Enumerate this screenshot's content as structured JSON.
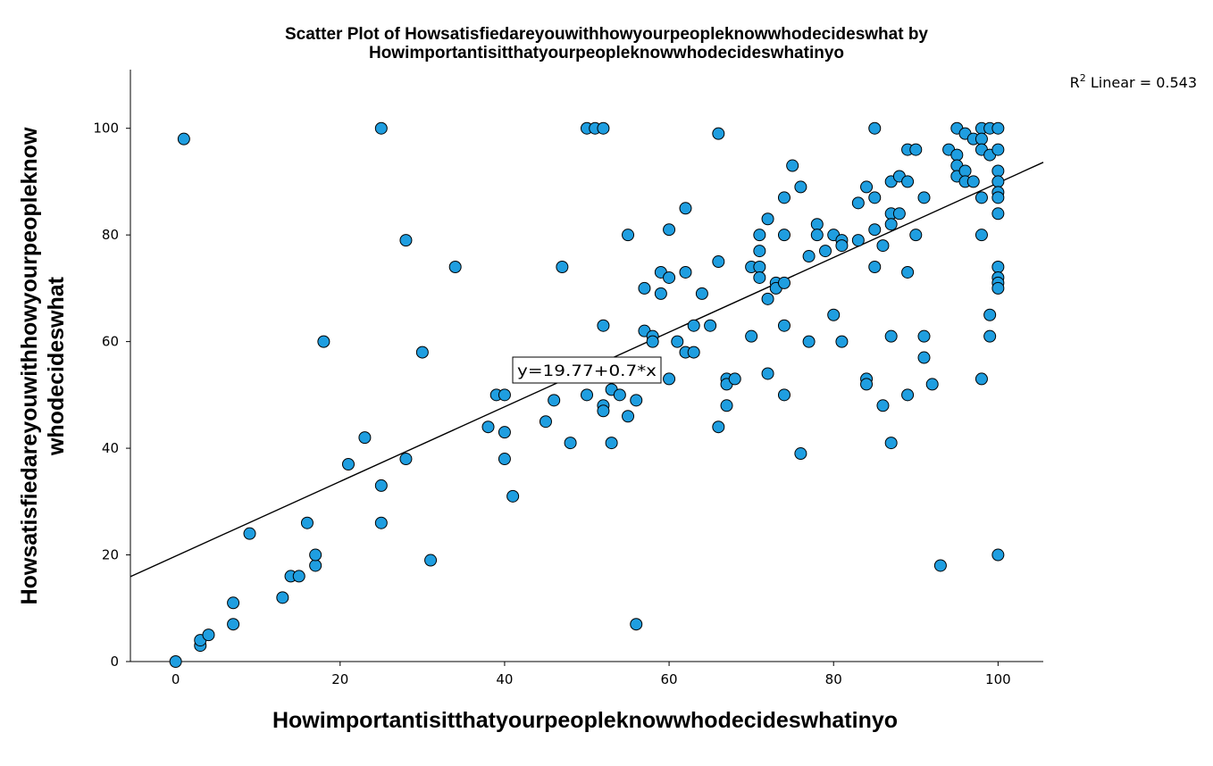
{
  "chart_data": {
    "type": "scatter",
    "title_line1": "Scatter Plot of Howsatisfiedareyouwithhowyourpeopleknowwhodecideswhat by",
    "title_line2": "Howimportantisitthatyourpeopleknowwhodecideswhatinyo",
    "xlabel": "Howimportantisitthatyourpeopleknowwhodecideswhatinyo",
    "ylabel_line1": "Howsatisfiedareyouwithhowyourpeopleknow",
    "ylabel_line2": "whodecideswhat",
    "r2_label": "Linear = 0.543",
    "r2_prefix": "R",
    "r2_sup": "2",
    "fit_equation": "y=19.77+0.7*x",
    "fit": {
      "intercept": 19.77,
      "slope": 0.7
    },
    "xlim": [
      -5.5,
      105.5
    ],
    "ylim": [
      0,
      111
    ],
    "xticks": [
      0,
      20,
      40,
      60,
      80,
      100
    ],
    "yticks": [
      0,
      20,
      40,
      60,
      80,
      100
    ],
    "grid": false,
    "point_color": "#1f9ee0",
    "points": [
      [
        0,
        0
      ],
      [
        1,
        98
      ],
      [
        3,
        3
      ],
      [
        3,
        4
      ],
      [
        4,
        5
      ],
      [
        7,
        7
      ],
      [
        7,
        11
      ],
      [
        9,
        24
      ],
      [
        13,
        12
      ],
      [
        14,
        16
      ],
      [
        15,
        16
      ],
      [
        16,
        26
      ],
      [
        17,
        18
      ],
      [
        17,
        20
      ],
      [
        18,
        60
      ],
      [
        21,
        37
      ],
      [
        23,
        42
      ],
      [
        25,
        26
      ],
      [
        25,
        33
      ],
      [
        25,
        100
      ],
      [
        28,
        38
      ],
      [
        28,
        79
      ],
      [
        30,
        58
      ],
      [
        31,
        19
      ],
      [
        34,
        74
      ],
      [
        38,
        44
      ],
      [
        39,
        50
      ],
      [
        40,
        50
      ],
      [
        40,
        43
      ],
      [
        40,
        38
      ],
      [
        41,
        31
      ],
      [
        45,
        45
      ],
      [
        46,
        49
      ],
      [
        47,
        74
      ],
      [
        48,
        41
      ],
      [
        50,
        50
      ],
      [
        50,
        100
      ],
      [
        51,
        100
      ],
      [
        52,
        100
      ],
      [
        52,
        63
      ],
      [
        52,
        48
      ],
      [
        52,
        47
      ],
      [
        53,
        51
      ],
      [
        53,
        41
      ],
      [
        54,
        50
      ],
      [
        55,
        46
      ],
      [
        55,
        80
      ],
      [
        56,
        49
      ],
      [
        56,
        7
      ],
      [
        57,
        70
      ],
      [
        57,
        62
      ],
      [
        58,
        61
      ],
      [
        58,
        60
      ],
      [
        59,
        73
      ],
      [
        59,
        69
      ],
      [
        60,
        81
      ],
      [
        60,
        72
      ],
      [
        60,
        53
      ],
      [
        61,
        60
      ],
      [
        62,
        85
      ],
      [
        62,
        73
      ],
      [
        62,
        58
      ],
      [
        63,
        63
      ],
      [
        63,
        58
      ],
      [
        64,
        69
      ],
      [
        65,
        63
      ],
      [
        66,
        99
      ],
      [
        66,
        75
      ],
      [
        66,
        44
      ],
      [
        67,
        53
      ],
      [
        67,
        52
      ],
      [
        67,
        48
      ],
      [
        68,
        53
      ],
      [
        70,
        74
      ],
      [
        70,
        61
      ],
      [
        71,
        80
      ],
      [
        71,
        77
      ],
      [
        71,
        74
      ],
      [
        71,
        72
      ],
      [
        72,
        83
      ],
      [
        72,
        68
      ],
      [
        72,
        54
      ],
      [
        73,
        71
      ],
      [
        73,
        70
      ],
      [
        74,
        87
      ],
      [
        74,
        80
      ],
      [
        74,
        71
      ],
      [
        74,
        63
      ],
      [
        74,
        50
      ],
      [
        75,
        93
      ],
      [
        76,
        89
      ],
      [
        76,
        39
      ],
      [
        77,
        76
      ],
      [
        77,
        60
      ],
      [
        78,
        82
      ],
      [
        78,
        80
      ],
      [
        79,
        77
      ],
      [
        80,
        80
      ],
      [
        80,
        65
      ],
      [
        81,
        79
      ],
      [
        81,
        78
      ],
      [
        81,
        60
      ],
      [
        83,
        86
      ],
      [
        83,
        79
      ],
      [
        84,
        89
      ],
      [
        84,
        53
      ],
      [
        84,
        52
      ],
      [
        85,
        100
      ],
      [
        85,
        87
      ],
      [
        85,
        81
      ],
      [
        85,
        74
      ],
      [
        86,
        78
      ],
      [
        86,
        48
      ],
      [
        87,
        90
      ],
      [
        87,
        84
      ],
      [
        87,
        82
      ],
      [
        87,
        61
      ],
      [
        87,
        41
      ],
      [
        88,
        91
      ],
      [
        88,
        84
      ],
      [
        89,
        96
      ],
      [
        89,
        90
      ],
      [
        89,
        73
      ],
      [
        89,
        50
      ],
      [
        90,
        96
      ],
      [
        90,
        80
      ],
      [
        91,
        87
      ],
      [
        91,
        61
      ],
      [
        91,
        57
      ],
      [
        92,
        52
      ],
      [
        93,
        18
      ],
      [
        94,
        96
      ],
      [
        95,
        100
      ],
      [
        95,
        95
      ],
      [
        95,
        93
      ],
      [
        95,
        91
      ],
      [
        96,
        99
      ],
      [
        96,
        92
      ],
      [
        96,
        90
      ],
      [
        97,
        98
      ],
      [
        97,
        90
      ],
      [
        98,
        100
      ],
      [
        98,
        98
      ],
      [
        98,
        96
      ],
      [
        98,
        87
      ],
      [
        98,
        80
      ],
      [
        98,
        53
      ],
      [
        99,
        100
      ],
      [
        99,
        95
      ],
      [
        99,
        65
      ],
      [
        99,
        61
      ],
      [
        100,
        100
      ],
      [
        100,
        96
      ],
      [
        100,
        92
      ],
      [
        100,
        90
      ],
      [
        100,
        88
      ],
      [
        100,
        87
      ],
      [
        100,
        84
      ],
      [
        100,
        74
      ],
      [
        100,
        72
      ],
      [
        100,
        71
      ],
      [
        100,
        70
      ],
      [
        100,
        20
      ]
    ]
  }
}
